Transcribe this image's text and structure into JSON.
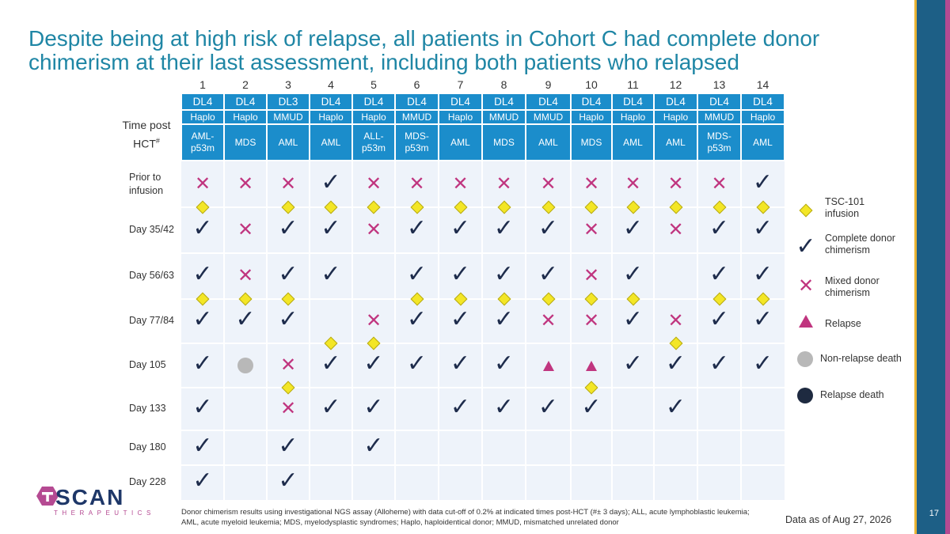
{
  "title": "Despite being at high risk of relapse, all patients in Cohort C had complete donor chimerism at their last assessment, including both patients who relapsed",
  "colors": {
    "accent": "#1f86a5",
    "header": "#1b8dcb",
    "check": "#1e2c4c",
    "cross": "#c0357f",
    "diamond": "#f3e626",
    "grid": "#eef3fa"
  },
  "chart_data": {
    "type": "table",
    "title": "Despite being at high risk of relapse, all patients in Cohort C had complete donor chimerism at their last assessment, including both patients who relapsed",
    "patients": [
      "1",
      "2",
      "3",
      "4",
      "5",
      "6",
      "7",
      "8",
      "9",
      "10",
      "11",
      "12",
      "13",
      "14"
    ],
    "dose_levels": [
      "DL4",
      "DL4",
      "DL3",
      "DL4",
      "DL4",
      "DL4",
      "DL4",
      "DL4",
      "DL4",
      "DL4",
      "DL4",
      "DL4",
      "DL4",
      "DL4"
    ],
    "donor": [
      "Haplo",
      "Haplo",
      "MMUD",
      "Haplo",
      "Haplo",
      "MMUD",
      "Haplo",
      "MMUD",
      "MMUD",
      "Haplo",
      "Haplo",
      "Haplo",
      "MMUD",
      "Haplo"
    ],
    "diagnosis": [
      "AML-\np53m",
      "MDS",
      "AML",
      "AML",
      "ALL-\np53m",
      "MDS-\np53m",
      "AML",
      "MDS",
      "AML",
      "MDS",
      "AML",
      "AML",
      "MDS-\np53m",
      "AML"
    ],
    "row_header": "Time  post HCT",
    "row_header_sup": "#",
    "timepoints": [
      "Prior to infusion",
      "Day 35/42",
      "Day 56/63",
      "Day 77/84",
      "Day 105",
      "Day 133",
      "Day 180",
      "Day 228"
    ],
    "status_grid": [
      [
        "X",
        "X",
        "X",
        "C",
        "X",
        "X",
        "X",
        "X",
        "X",
        "X",
        "X",
        "X",
        "X",
        "C"
      ],
      [
        "C",
        "X",
        "C",
        "C",
        "X",
        "C",
        "C",
        "C",
        "C",
        "X",
        "C",
        "X",
        "C",
        "C"
      ],
      [
        "C",
        "X",
        "C",
        "C",
        "",
        "C",
        "C",
        "C",
        "C",
        "X",
        "C",
        "",
        "C",
        "C"
      ],
      [
        "C",
        "C",
        "C",
        "",
        "X",
        "C",
        "C",
        "C",
        "X",
        "X",
        "C",
        "X",
        "C",
        "C"
      ],
      [
        "C",
        "G",
        "X",
        "C",
        "C",
        "C",
        "C",
        "C",
        "R",
        "R",
        "C",
        "C",
        "C",
        "C"
      ],
      [
        "C",
        "",
        "X",
        "C",
        "C",
        "",
        "C",
        "C",
        "C",
        "C",
        "",
        "C",
        "",
        ""
      ],
      [
        "C",
        "",
        "C",
        "",
        "C",
        "",
        "",
        "",
        "",
        "",
        "",
        "",
        "",
        ""
      ],
      [
        "C",
        "",
        "C",
        "",
        "",
        "",
        "",
        "",
        "",
        "",
        "",
        "",
        "",
        ""
      ]
    ],
    "status_key": {
      "C": "Complete donor chimerism",
      "X": "Mixed donor chimerism",
      "R": "Relapse",
      "G": "Non-relapse death",
      "D": "Relapse death"
    },
    "infusions": [
      {
        "after_timepoint": "Prior to infusion",
        "patients": [
          1,
          3,
          4,
          5,
          6,
          7,
          8,
          9,
          10,
          11,
          12,
          13,
          14
        ]
      },
      {
        "after_timepoint": "Day 56/63",
        "patients": [
          1,
          2,
          3,
          6,
          7,
          8,
          9,
          10,
          11,
          13,
          14
        ]
      },
      {
        "after_timepoint": "Day 77/84",
        "patients": [
          4,
          5,
          12
        ]
      },
      {
        "after_timepoint": "Day 105",
        "patients": [
          3,
          10
        ]
      }
    ]
  },
  "legend": {
    "infusion": "TSC-101\ninfusion",
    "complete": "Complete donor\nchimerism",
    "mixed": "Mixed donor\nchimerism",
    "relapse": "Relapse",
    "nonrelapse_death": "Non-relapse death",
    "relapse_death": "Relapse death"
  },
  "footnote": "Donor chimerism results using investigational NGS assay (Alloheme) with data cut-off of 0.2% at indicated times post-HCT (#± 3 days); ALL, acute lymphoblastic leukemia; AML, acute myeloid leukemia; MDS, myelodysplastic syndromes; Haplo, haploidentical donor; MMUD, mismatched unrelated donor",
  "data_as_of": "Data as of Aug 27, 2026",
  "page_number": "17",
  "logo": {
    "name": "TSCAN",
    "sub": "THERAPEUTICS"
  },
  "glyphs": {
    "check": "✓",
    "cross": "✕"
  }
}
